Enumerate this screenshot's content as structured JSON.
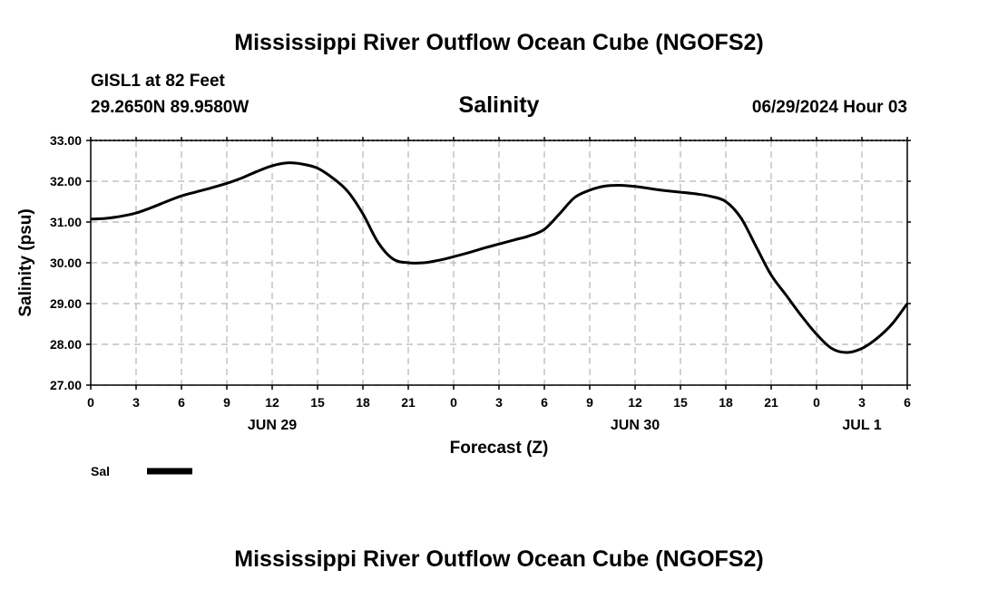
{
  "page": {
    "title_top": "Mississippi River Outflow Ocean Cube (NGOFS2)",
    "title_bottom": "Mississippi River Outflow Ocean Cube (NGOFS2)",
    "station": "GISL1 at 82 Feet",
    "coords": "29.2650N  89.9580W",
    "variable": "Salinity",
    "timestamp": "06/29/2024 Hour 03"
  },
  "chart_data": {
    "type": "line",
    "title": "Salinity",
    "xlabel": "Forecast (Z)",
    "ylabel": "Salinity (psu)",
    "xlim": [
      0,
      54
    ],
    "ylim": [
      27.0,
      33.0
    ],
    "grid": true,
    "y_ticks": [
      "27.00",
      "28.00",
      "29.00",
      "30.00",
      "31.00",
      "32.00",
      "33.00"
    ],
    "x_tick_labels": [
      "0",
      "3",
      "6",
      "9",
      "12",
      "15",
      "18",
      "21",
      "0",
      "3",
      "6",
      "9",
      "12",
      "15",
      "18",
      "21",
      "0",
      "3",
      "6"
    ],
    "day_labels": [
      {
        "label": "JUN 29",
        "hour": 12
      },
      {
        "label": "JUN 30",
        "hour": 36
      },
      {
        "label": "JUL 1",
        "hour": 51
      }
    ],
    "legend": {
      "position": "bottom-left",
      "entries": [
        "Sal"
      ]
    },
    "series": [
      {
        "name": "Sal",
        "color": "#000000",
        "x": [
          0,
          1,
          2,
          3,
          4,
          5,
          6,
          7,
          8,
          9,
          10,
          11,
          12,
          13,
          14,
          15,
          16,
          17,
          18,
          19,
          20,
          21,
          22,
          23,
          24,
          25,
          26,
          27,
          28,
          29,
          30,
          31,
          32,
          33,
          34,
          35,
          36,
          37,
          38,
          39,
          40,
          41,
          42,
          43,
          44,
          45,
          46,
          47,
          48,
          49,
          50,
          51,
          52,
          53,
          54
        ],
        "values": [
          31.07,
          31.09,
          31.14,
          31.22,
          31.35,
          31.5,
          31.64,
          31.74,
          31.84,
          31.95,
          32.08,
          32.24,
          32.38,
          32.45,
          32.42,
          32.32,
          32.08,
          31.75,
          31.2,
          30.5,
          30.09,
          30.0,
          30.0,
          30.06,
          30.15,
          30.25,
          30.36,
          30.46,
          30.56,
          30.66,
          30.82,
          31.2,
          31.6,
          31.78,
          31.88,
          31.9,
          31.87,
          31.82,
          31.77,
          31.73,
          31.69,
          31.63,
          31.5,
          31.1,
          30.4,
          29.7,
          29.2,
          28.7,
          28.25,
          27.9,
          27.8,
          27.9,
          28.15,
          28.5,
          29.0
        ]
      }
    ]
  }
}
